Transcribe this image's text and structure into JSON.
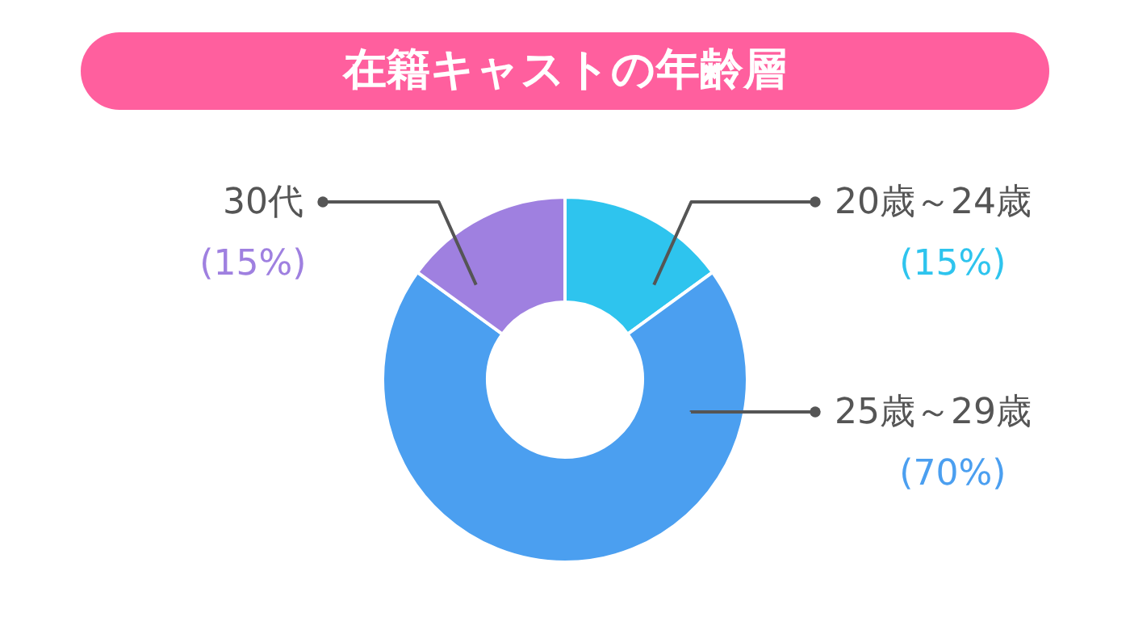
{
  "chart_data": {
    "type": "donut",
    "title": "在籍キャストの年齢層",
    "categories": [
      "20歳～24歳",
      "25歳～29歳",
      "30代"
    ],
    "values": [
      15,
      70,
      15
    ],
    "colors": [
      "#2ec4ee",
      "#4b9ff0",
      "#9f80e0"
    ],
    "value_labels": [
      "(15%)",
      "(70%)",
      "(15%)"
    ]
  }
}
